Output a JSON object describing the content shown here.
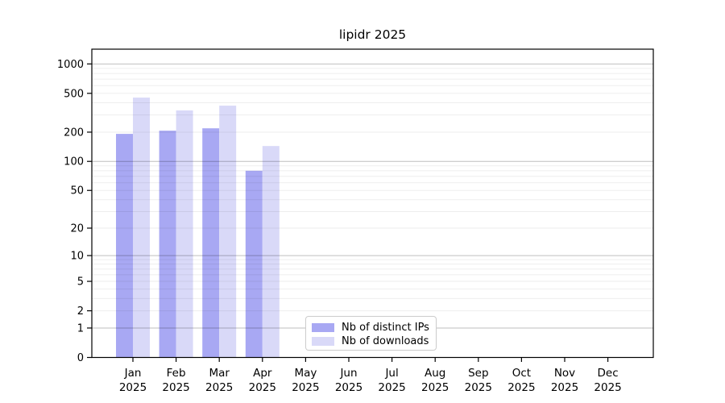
{
  "chart_data": {
    "type": "bar",
    "title": "lipidr 2025",
    "categories": [
      "Jan",
      "Feb",
      "Mar",
      "Apr",
      "May",
      "Jun",
      "Jul",
      "Aug",
      "Sep",
      "Oct",
      "Nov",
      "Dec"
    ],
    "x_tick_year": "2025",
    "series": [
      {
        "name": "Nb of distinct IPs",
        "color": "#a8a8f3",
        "values": [
          192,
          207,
          219,
          80,
          0,
          0,
          0,
          0,
          0,
          0,
          0,
          0
        ]
      },
      {
        "name": "Nb of downloads",
        "color": "#d9d9f8",
        "values": [
          452,
          334,
          374,
          144,
          0,
          0,
          0,
          0,
          0,
          0,
          0,
          0
        ]
      }
    ],
    "yscale": "log1p",
    "yticks": [
      0,
      1,
      2,
      5,
      10,
      20,
      50,
      100,
      200,
      500,
      1000
    ],
    "ylim": [
      0,
      1416
    ],
    "grid": {
      "on": true,
      "major_values": [
        1,
        10,
        100,
        1000
      ],
      "major_color": "rgba(0,0,0,0.25)",
      "minor_color": "rgba(0,0,0,0.065)"
    },
    "legend_position": "bottom-center"
  }
}
